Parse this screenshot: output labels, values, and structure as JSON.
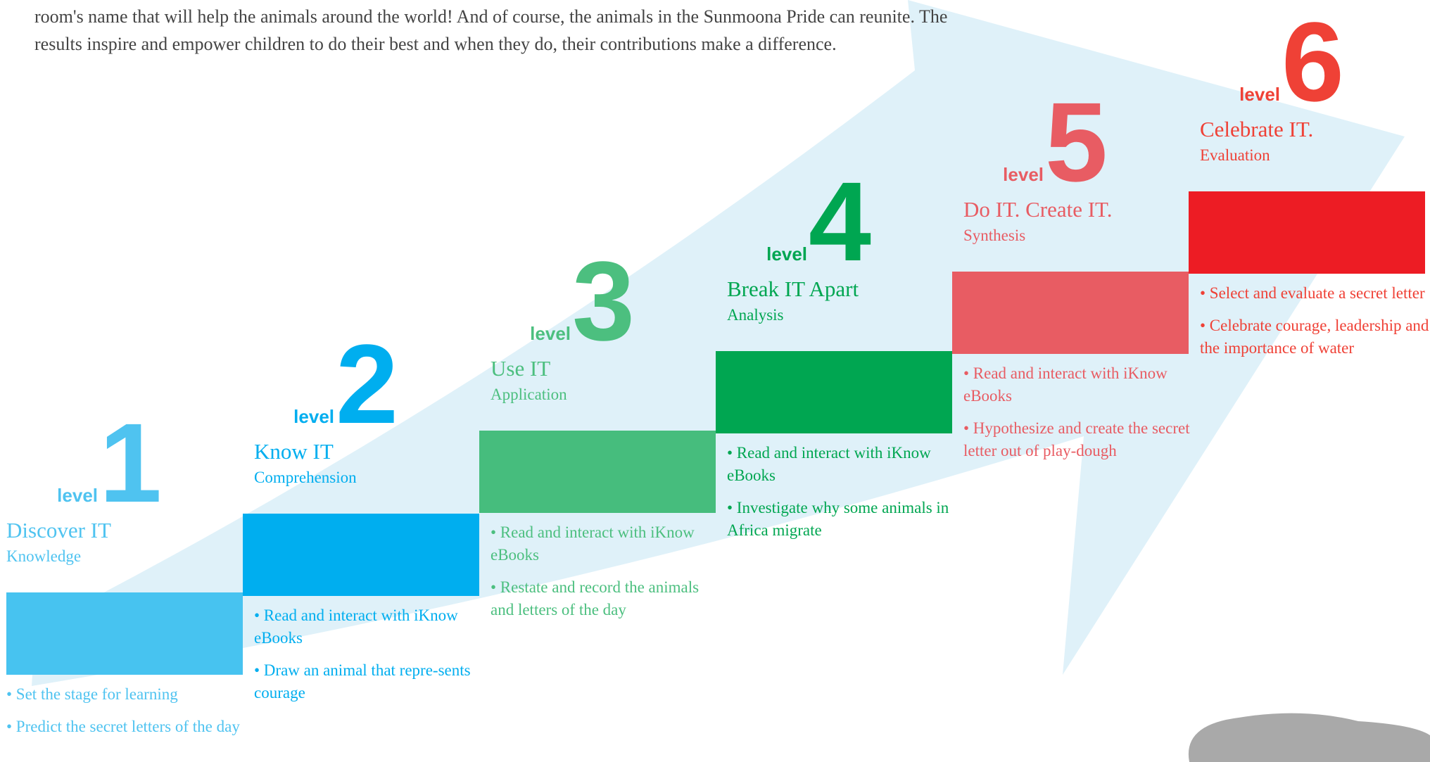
{
  "intro": [
    "room's name that will help the animals around the world! And of course, the animals in the Sunmoona Pride can reunite. The",
    "results inspire and empower children to do their best and when they do, their contributions make a difference."
  ],
  "levels": [
    {
      "word": "level",
      "number": "1",
      "title": "Discover IT",
      "subtitle": "Knowledge",
      "bullets": [
        "• Set the stage for learning",
        "• Predict the secret letters of the day"
      ]
    },
    {
      "word": "level",
      "number": "2",
      "title": "Know IT",
      "subtitle": "Comprehension",
      "bullets": [
        "• Read and interact with iKnow eBooks",
        "• Draw an animal that repre-sents courage"
      ]
    },
    {
      "word": "level",
      "number": "3",
      "title": "Use IT",
      "subtitle": "Application",
      "bullets": [
        "• Read and interact with iKnow eBooks",
        "• Restate and record the animals and letters of the day"
      ]
    },
    {
      "word": "level",
      "number": "4",
      "title": "Break IT Apart",
      "subtitle": "Analysis",
      "bullets": [
        "• Read and interact with iKnow eBooks",
        "• Investigate why some animals in Africa migrate"
      ]
    },
    {
      "word": "level",
      "number": "5",
      "title": "Do IT. Create IT.",
      "subtitle": "Synthesis",
      "bullets": [
        "• Read and interact with iKnow eBooks",
        "• Hypothesize and create the secret letter out of play-dough"
      ]
    },
    {
      "word": "level",
      "number": "6",
      "title": "Celebrate IT.",
      "subtitle": "Evaluation",
      "bullets": [
        "• Select and evaluate a secret letter",
        "• Celebrate courage, leadership and the importance of water"
      ]
    }
  ]
}
